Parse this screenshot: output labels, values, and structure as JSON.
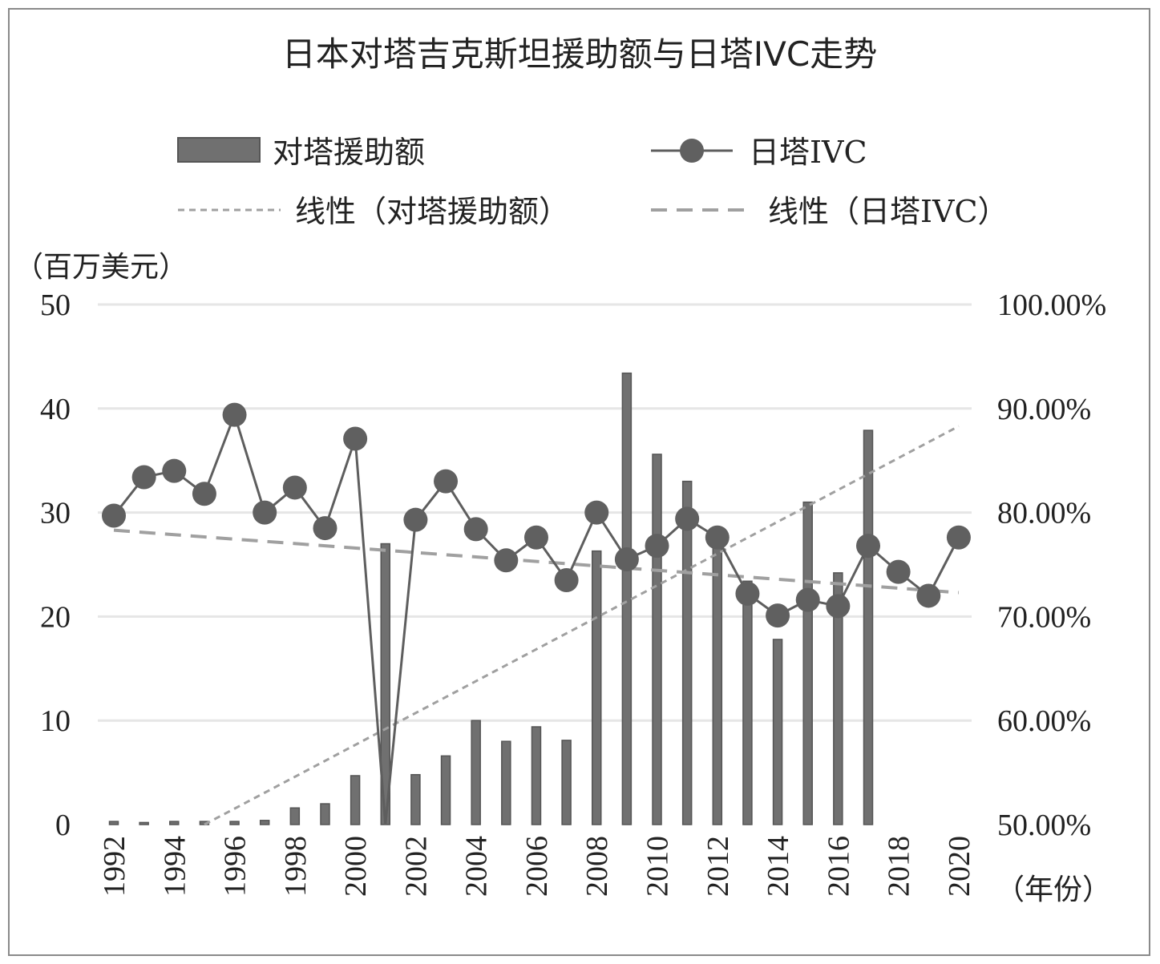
{
  "chart_data": {
    "type": "bar+line",
    "title": "日本对塔吉克斯坦援助额与日塔IVC走势",
    "left_axis_unit": "（百万美元）",
    "x_axis_unit": "（年份）",
    "y_left": {
      "min": 0,
      "max": 50,
      "ticks": [
        "0",
        "10",
        "20",
        "30",
        "40",
        "50"
      ]
    },
    "y_right": {
      "min": 0.5,
      "max": 1.0,
      "ticks": [
        "50.00%",
        "60.00%",
        "70.00%",
        "80.00%",
        "90.00%",
        "100.00%"
      ]
    },
    "x": [
      1992,
      1993,
      1994,
      1995,
      1996,
      1997,
      1998,
      1999,
      2000,
      2001,
      2002,
      2003,
      2004,
      2005,
      2006,
      2007,
      2008,
      2009,
      2010,
      2011,
      2012,
      2013,
      2014,
      2015,
      2016,
      2017,
      2018,
      2019,
      2020
    ],
    "x_tick_labels": [
      "1992",
      "1994",
      "1996",
      "1998",
      "2000",
      "2002",
      "2004",
      "2006",
      "2008",
      "2010",
      "2012",
      "2014",
      "2016",
      "2018",
      "2020"
    ],
    "legend": {
      "aid": "对塔援助额",
      "ivc": "日塔IVC",
      "aid_trend": "线性（对塔援助额）",
      "ivc_trend": "线性（日塔IVC）"
    },
    "series": [
      {
        "name": "对塔援助额",
        "type": "bar",
        "axis": "left",
        "values": [
          0.3,
          0.2,
          0.3,
          0.3,
          0.3,
          0.4,
          1.6,
          2.0,
          4.7,
          27.0,
          4.8,
          6.6,
          10.0,
          8.0,
          9.4,
          8.1,
          26.3,
          43.4,
          35.6,
          33.0,
          27.5,
          23.4,
          17.8,
          31.0,
          24.2,
          37.9,
          null,
          null,
          null
        ]
      },
      {
        "name": "日塔IVC",
        "type": "line",
        "axis": "right",
        "values": [
          0.797,
          0.834,
          0.84,
          0.818,
          0.894,
          0.8,
          0.824,
          0.785,
          0.871,
          0.5,
          0.793,
          0.83,
          0.784,
          0.754,
          0.776,
          0.735,
          0.8,
          0.755,
          0.768,
          0.794,
          0.776,
          0.722,
          0.701,
          0.716,
          0.71,
          0.768,
          0.743,
          0.72,
          0.776
        ]
      }
    ],
    "trendlines": [
      {
        "name": "线性（对塔援助额）",
        "axis": "left",
        "from": [
          1995,
          0
        ],
        "to": [
          2020,
          38.3
        ]
      },
      {
        "name": "线性（日塔IVC）",
        "axis": "right",
        "from": [
          1992,
          0.783
        ],
        "to": [
          2020,
          0.723
        ]
      }
    ],
    "colors": {
      "bar": "#707070",
      "bar_edge": "#555555",
      "line": "#5e5e5e",
      "marker": "#606060",
      "trend": "#a0a0a0",
      "grid": "#e6e6e6"
    }
  }
}
